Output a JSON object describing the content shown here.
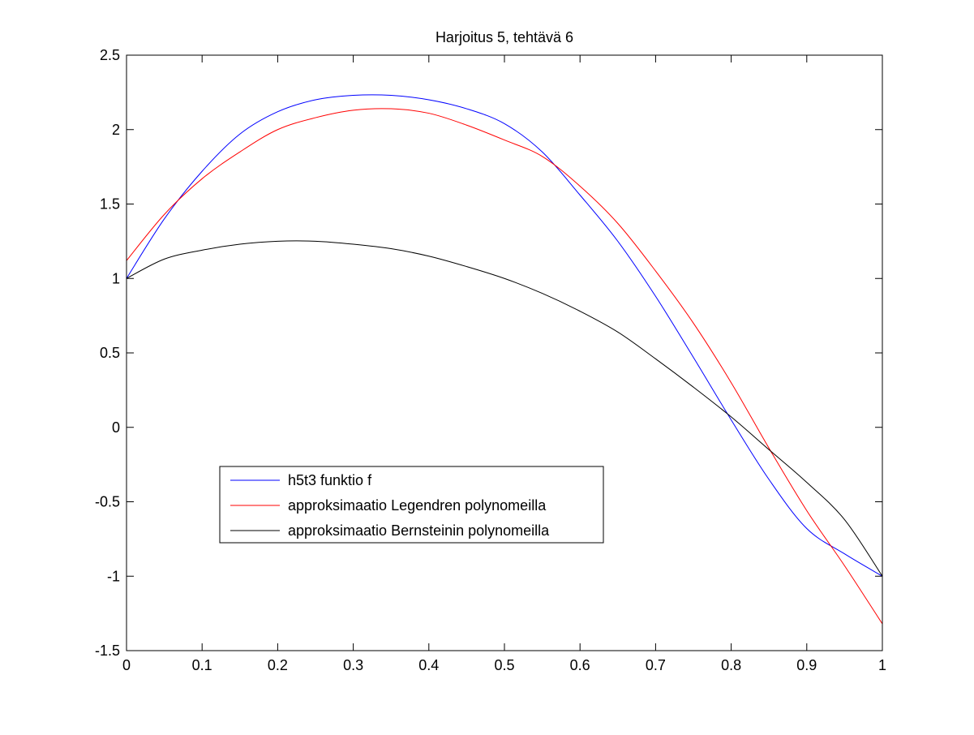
{
  "chart_data": {
    "type": "line",
    "title": "Harjoitus 5, tehtävä 6",
    "xlabel": "",
    "ylabel": "",
    "xlim": [
      0,
      1
    ],
    "ylim": [
      -1.5,
      2.5
    ],
    "xticks": [
      0,
      0.1,
      0.2,
      0.3,
      0.4,
      0.5,
      0.6,
      0.7,
      0.8,
      0.9,
      1
    ],
    "xtick_labels": [
      "0",
      "0.1",
      "0.2",
      "0.3",
      "0.4",
      "0.5",
      "0.6",
      "0.7",
      "0.8",
      "0.9",
      "1"
    ],
    "yticks": [
      -1.5,
      -1,
      -0.5,
      0,
      0.5,
      1,
      1.5,
      2,
      2.5
    ],
    "ytick_labels": [
      "-1.5",
      "-1",
      "-0.5",
      "0",
      "0.5",
      "1",
      "1.5",
      "2",
      "2.5"
    ],
    "grid": false,
    "legend_position": "lower-left",
    "x": [
      0,
      0.05,
      0.1,
      0.15,
      0.2,
      0.25,
      0.3,
      0.35,
      0.4,
      0.45,
      0.5,
      0.55,
      0.6,
      0.65,
      0.7,
      0.75,
      0.8,
      0.85,
      0.9,
      0.95,
      1
    ],
    "series": [
      {
        "name": "h5t3 funktio f",
        "color": "#0000ff",
        "values": [
          1.0,
          1.4,
          1.72,
          1.97,
          2.12,
          2.2,
          2.23,
          2.23,
          2.2,
          2.14,
          2.04,
          1.85,
          1.56,
          1.25,
          0.88,
          0.47,
          0.05,
          -0.35,
          -0.68,
          -0.85,
          -1.0
        ]
      },
      {
        "name": "approksimaatio Legendren polynomeilla",
        "color": "#ff0000",
        "values": [
          1.12,
          1.43,
          1.67,
          1.85,
          2.0,
          2.08,
          2.13,
          2.14,
          2.11,
          2.03,
          1.93,
          1.82,
          1.62,
          1.37,
          1.05,
          0.7,
          0.3,
          -0.14,
          -0.56,
          -0.93,
          -1.32
        ]
      },
      {
        "name": "approksimaatio Bernsteinin polynomeilla",
        "color": "#000000",
        "values": [
          1.0,
          1.13,
          1.19,
          1.23,
          1.25,
          1.25,
          1.23,
          1.2,
          1.15,
          1.08,
          1.0,
          0.9,
          0.78,
          0.64,
          0.46,
          0.27,
          0.07,
          -0.15,
          -0.37,
          -0.62,
          -1.0
        ]
      }
    ]
  }
}
